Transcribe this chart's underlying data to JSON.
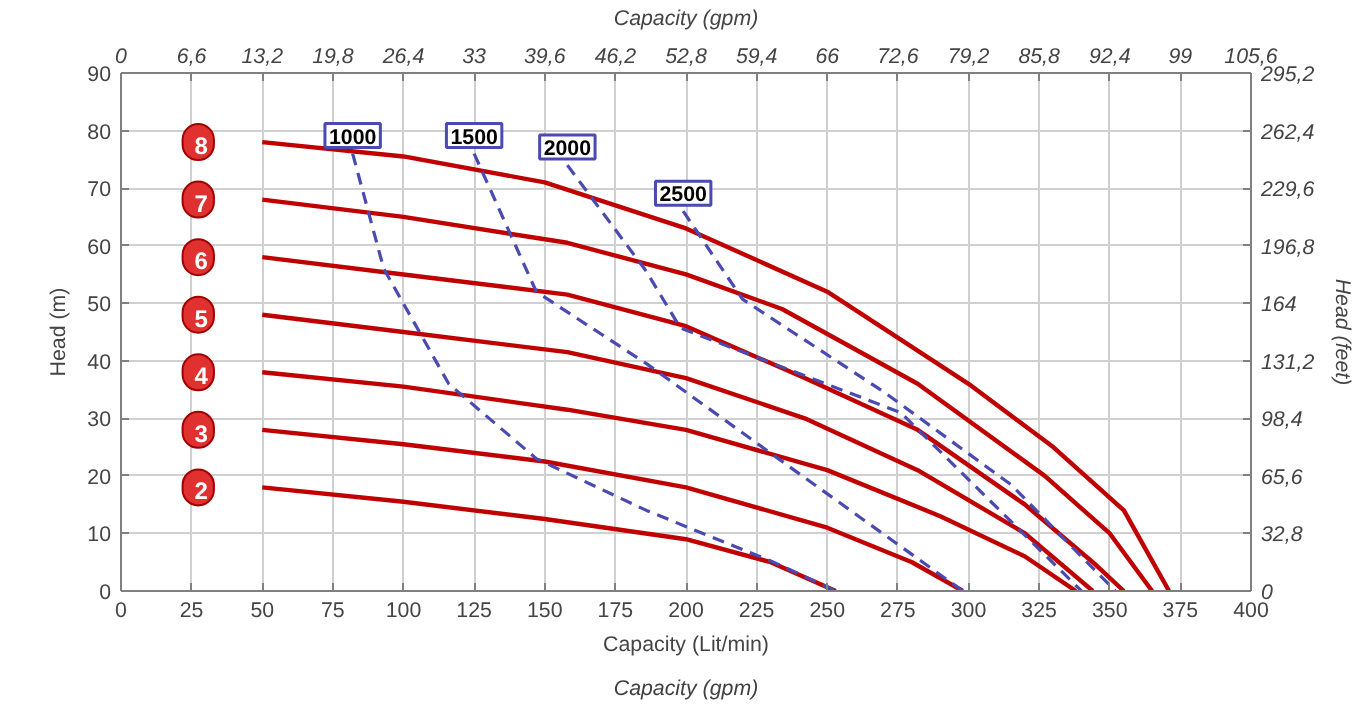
{
  "chart_data": {
    "type": "line",
    "xlabel": "Capacity (Lit/min)",
    "ylabel": "Head (m)",
    "y2label": "Head (feet)",
    "x2label": "Capacity (gpm)",
    "annotations": [
      "Capacity (gpm)"
    ],
    "xlim": [
      0,
      400
    ],
    "xticks": [
      0,
      25,
      50,
      75,
      100,
      125,
      150,
      175,
      200,
      225,
      250,
      275,
      300,
      325,
      350,
      375,
      400
    ],
    "ylim": [
      0,
      90
    ],
    "yticks": [
      0,
      10,
      20,
      30,
      40,
      50,
      60,
      70,
      80,
      90
    ],
    "x2lim": [
      0,
      105.6
    ],
    "x2ticks": [
      0,
      {
        "value": 6.6,
        "label": "6,6"
      },
      {
        "value": 13.2,
        "label": "13,2"
      },
      {
        "value": 19.8,
        "label": "19,8"
      },
      {
        "value": 26.4,
        "label": "26,4"
      },
      33,
      {
        "value": 39.6,
        "label": "39,6"
      },
      {
        "value": 46.2,
        "label": "46,2"
      },
      {
        "value": 52.8,
        "label": "52,8"
      },
      {
        "value": 59.4,
        "label": "59,4"
      },
      66,
      {
        "value": 72.6,
        "label": "72,6"
      },
      {
        "value": 79.2,
        "label": "79,2"
      },
      {
        "value": 85.8,
        "label": "85,8"
      },
      {
        "value": 92.4,
        "label": "92,4"
      },
      99,
      {
        "value": 105.6,
        "label": "105,6"
      }
    ],
    "y2lim": [
      0,
      295.2
    ],
    "y2ticks": [
      0,
      {
        "value": 32.8,
        "label": "32,8"
      },
      {
        "value": 65.6,
        "label": "65,6"
      },
      {
        "value": 98.4,
        "label": "98,4"
      },
      {
        "value": 131.2,
        "label": "131,2"
      },
      164,
      {
        "value": 196.8,
        "label": "196,8"
      },
      {
        "value": 229.6,
        "label": "229,6"
      },
      {
        "value": 262.4,
        "label": "262,4"
      },
      {
        "value": 295.2,
        "label": "295,2"
      }
    ],
    "grid": true,
    "marker": "none",
    "series": [
      {
        "name": "2",
        "color": "#c00000",
        "line_style": "solid",
        "x": [
          50,
          100,
          150,
          200,
          230,
          253
        ],
        "values": [
          18,
          15.5,
          12.5,
          9,
          5,
          0
        ]
      },
      {
        "name": "3",
        "color": "#c00000",
        "line_style": "solid",
        "x": [
          50,
          100,
          150,
          200,
          250,
          280,
          298
        ],
        "values": [
          28,
          25.5,
          22.5,
          18,
          11,
          5,
          0
        ]
      },
      {
        "name": "4",
        "color": "#c00000",
        "line_style": "solid",
        "x": [
          50,
          100,
          158,
          200,
          250,
          290,
          320,
          338
        ],
        "values": [
          38,
          35.5,
          31.5,
          28,
          21,
          13,
          6,
          0
        ]
      },
      {
        "name": "5",
        "color": "#c00000",
        "line_style": "solid",
        "x": [
          50,
          100,
          158,
          200,
          242,
          282,
          320,
          344
        ],
        "values": [
          48,
          45,
          41.5,
          37,
          30,
          21,
          10,
          0
        ]
      },
      {
        "name": "6",
        "color": "#c00000",
        "line_style": "solid",
        "x": [
          50,
          100,
          158,
          200,
          242,
          282,
          320,
          344,
          355
        ],
        "values": [
          58,
          55,
          51.5,
          46,
          37,
          28,
          15,
          5,
          0
        ]
      },
      {
        "name": "7",
        "color": "#c00000",
        "line_style": "solid",
        "x": [
          50,
          100,
          158,
          200,
          234,
          282,
          327,
          350,
          365
        ],
        "values": [
          68,
          65,
          60.5,
          55,
          49,
          36,
          20,
          10,
          0
        ]
      },
      {
        "name": "8",
        "color": "#c00000",
        "line_style": "solid",
        "x": [
          50,
          100,
          150,
          200,
          250,
          300,
          330,
          355,
          371
        ],
        "values": [
          78,
          75.5,
          71,
          63,
          52,
          36,
          25,
          14,
          0
        ]
      },
      {
        "name": "1000",
        "color": "#4a4ab0",
        "line_style": "dashed",
        "x": [
          82,
          93,
          116,
          147,
          186,
          231,
          253
        ],
        "values": [
          76,
          56,
          36,
          23,
          14,
          5,
          0
        ]
      },
      {
        "name": "1500",
        "color": "#4a4ab0",
        "line_style": "dashed",
        "x": [
          125,
          147,
          186,
          242,
          298
        ],
        "values": [
          76,
          52,
          39.5,
          19.7,
          0
        ]
      },
      {
        "name": "2000",
        "color": "#4a4ab0",
        "line_style": "dashed",
        "x": [
          158,
          186,
          198,
          276,
          340
        ],
        "values": [
          74,
          55.5,
          45.7,
          31,
          0
        ]
      },
      {
        "name": "2500",
        "color": "#4a4ab0",
        "line_style": "dashed",
        "x": [
          199,
          220,
          270,
          315,
          352
        ],
        "values": [
          66,
          50.7,
          34.6,
          18.5,
          0
        ]
      }
    ]
  }
}
